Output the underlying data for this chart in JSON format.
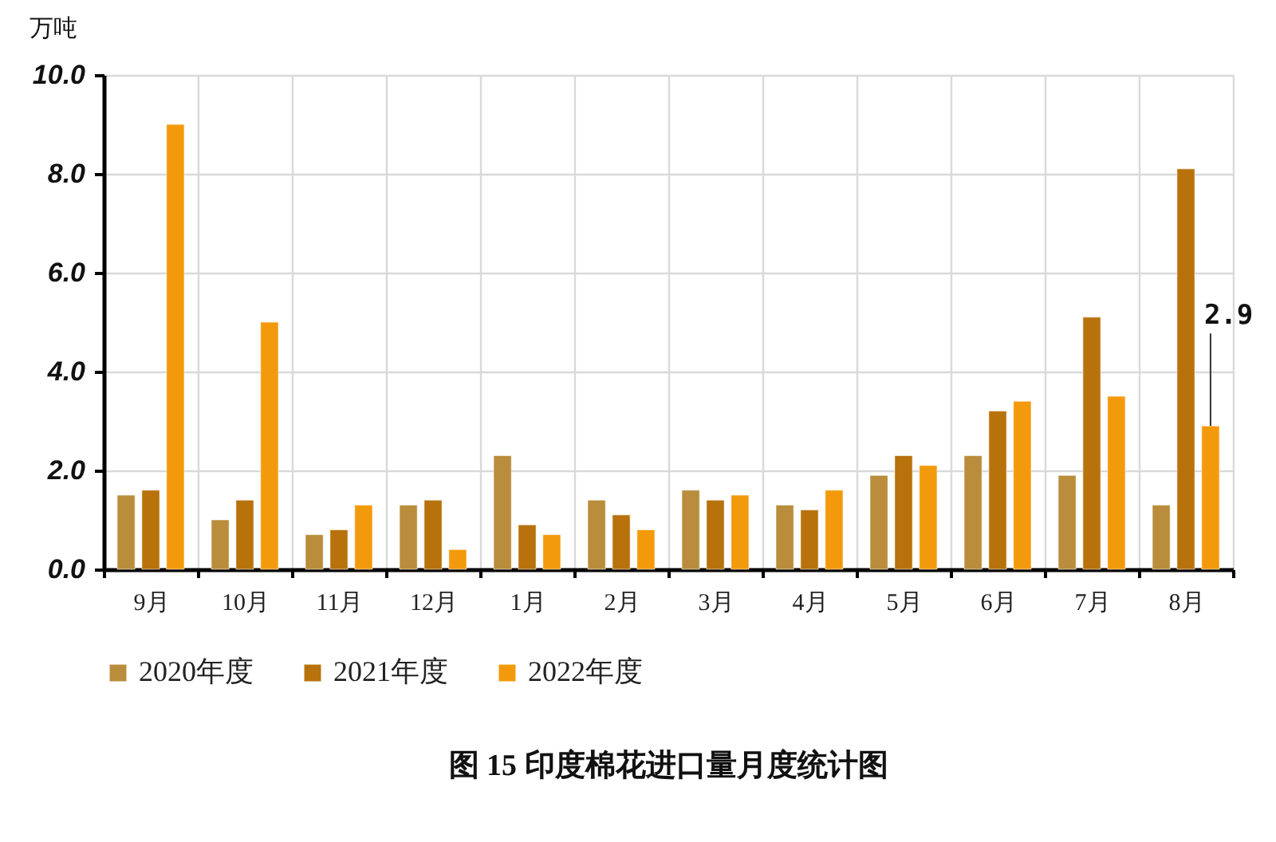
{
  "chart_data": {
    "type": "bar",
    "title": "图 15  印度棉花进口量月度统计图",
    "ylabel": "万吨",
    "categories": [
      "9月",
      "10月",
      "11月",
      "12月",
      "1月",
      "2月",
      "3月",
      "4月",
      "5月",
      "6月",
      "7月",
      "8月"
    ],
    "series": [
      {
        "name": "2020年度",
        "color": "#b98d3c",
        "values": [
          1.5,
          1.0,
          0.7,
          1.3,
          2.3,
          1.4,
          1.6,
          1.3,
          1.9,
          2.3,
          1.9,
          1.3
        ]
      },
      {
        "name": "2021年度",
        "color": "#b8720c",
        "values": [
          1.6,
          1.4,
          0.8,
          1.4,
          0.9,
          1.1,
          1.4,
          1.2,
          2.3,
          3.2,
          5.1,
          8.1
        ]
      },
      {
        "name": "2022年度",
        "color": "#f39a0c",
        "values": [
          9.0,
          5.0,
          1.3,
          0.4,
          0.7,
          0.8,
          1.5,
          1.6,
          2.1,
          3.4,
          3.5,
          2.9
        ],
        "value_labels": [
          null,
          null,
          null,
          null,
          null,
          null,
          null,
          null,
          null,
          null,
          null,
          "2.9"
        ]
      }
    ],
    "ylim": [
      0,
      10
    ],
    "yticks": [
      {
        "value": 0,
        "label": "0.0"
      },
      {
        "value": 2,
        "label": "2.0"
      },
      {
        "value": 4,
        "label": "4.0"
      },
      {
        "value": 6,
        "label": "6.0"
      },
      {
        "value": 8,
        "label": "8.0"
      },
      {
        "value": 10,
        "label": "10.0"
      }
    ],
    "grid": true,
    "legend": "bottom"
  }
}
